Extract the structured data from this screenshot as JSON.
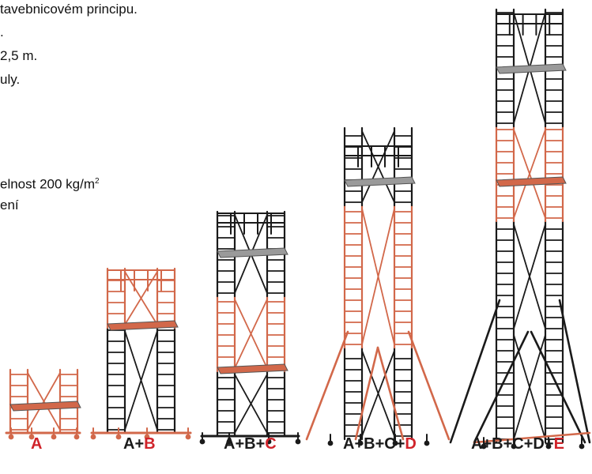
{
  "text_lines": [
    "tavebnicovém principu.",
    ".",
    "2,5 m.",
    "uly.",
    "elnost 200 kg/m",
    "ení"
  ],
  "superscript": "2",
  "colors": {
    "orange": "#d2684a",
    "black": "#1a1a1a",
    "red": "#d0232a",
    "gray": "#9a9a9a"
  },
  "captions": [
    {
      "parts": [
        "A"
      ],
      "plus": "+"
    },
    {
      "parts": [
        "A",
        "B"
      ],
      "plus": "+"
    },
    {
      "parts": [
        "A",
        "B",
        "C"
      ],
      "plus": "+"
    },
    {
      "parts": [
        "A",
        "B",
        "C",
        "D"
      ],
      "plus": "+"
    },
    {
      "parts": [
        "A",
        "B",
        "C",
        "D",
        "E"
      ],
      "plus": "+"
    }
  ]
}
